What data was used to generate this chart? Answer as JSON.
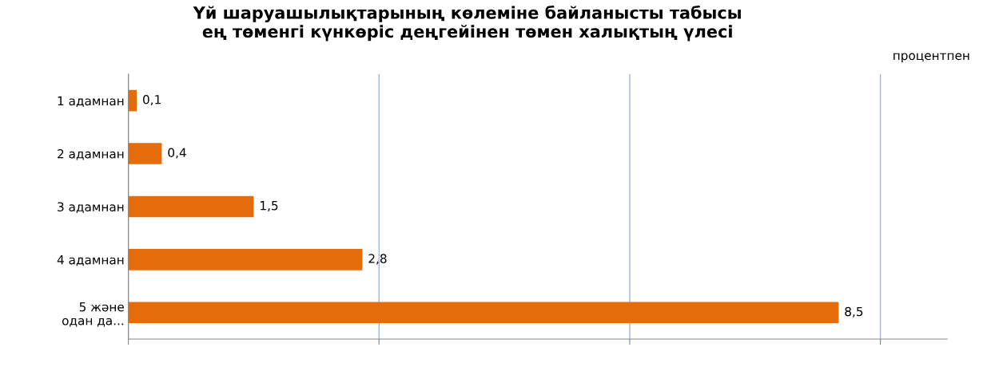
{
  "chart_data": {
    "type": "bar",
    "orientation": "horizontal",
    "title": "Үй шаруашылықтарының көлеміне байланысты табысы\nең төменгі күнкөріс деңгейінен төмен халықтың үлесі",
    "annotations": [
      "процентпен"
    ],
    "categories": [
      "1 адамнан",
      "2 адамнан",
      "3 адамнан",
      "4 адамнан",
      "5 және\nодан да..."
    ],
    "values": [
      0.1,
      0.4,
      1.5,
      2.8,
      8.5
    ],
    "value_labels": [
      "0,1",
      "0,4",
      "1,5",
      "2,8",
      "8,5"
    ],
    "color": "#e46c0a",
    "xlim": [
      0,
      9.8
    ],
    "xticks": [
      {
        "value": 0,
        "label": null
      },
      {
        "value": 3,
        "label": null
      },
      {
        "value": 6,
        "label": null
      },
      {
        "value": 9,
        "label": null
      }
    ],
    "grid": "x",
    "tick_labels": "y",
    "legend": false
  }
}
